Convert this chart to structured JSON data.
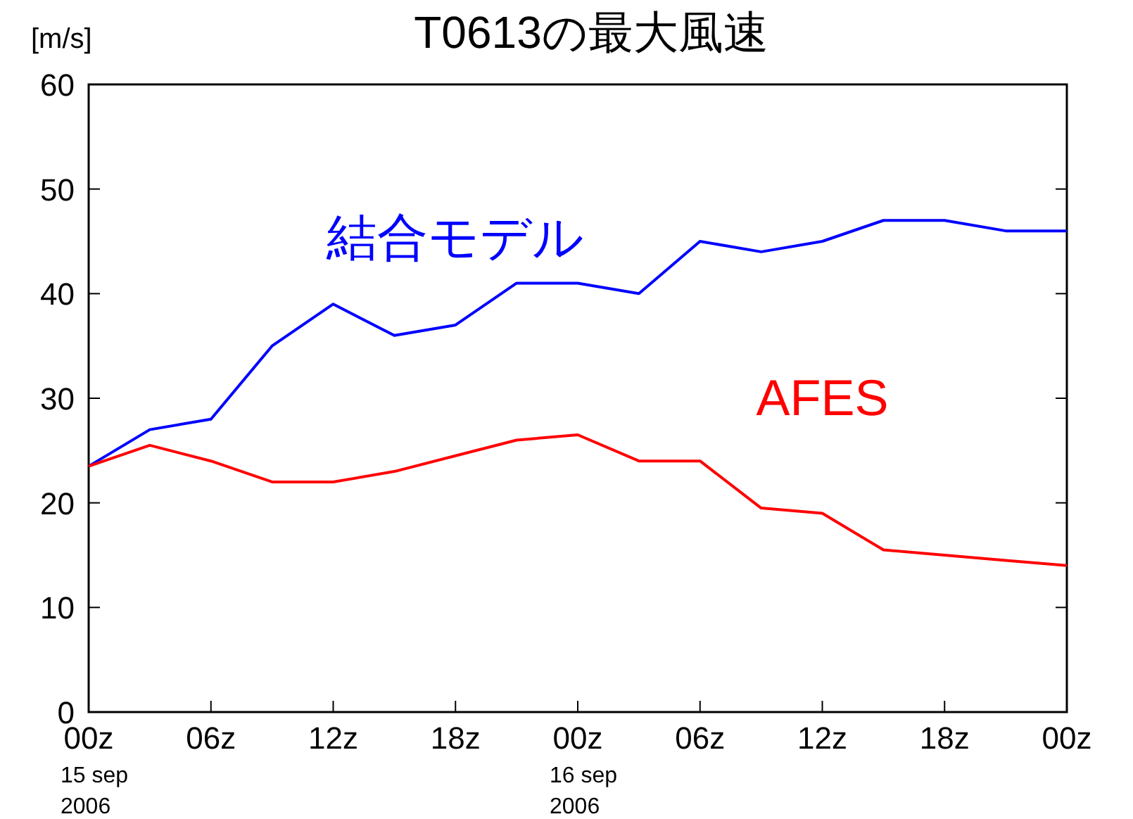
{
  "chart_data": {
    "type": "line",
    "title": "T0613の最大風速",
    "ylabel": "[m/s]",
    "x": [
      "2006-09-15T00:00",
      "2006-09-15T03:00",
      "2006-09-15T06:00",
      "2006-09-15T09:00",
      "2006-09-15T12:00",
      "2006-09-15T15:00",
      "2006-09-15T18:00",
      "2006-09-15T21:00",
      "2006-09-16T00:00",
      "2006-09-16T03:00",
      "2006-09-16T06:00",
      "2006-09-16T09:00",
      "2006-09-16T12:00",
      "2006-09-16T15:00",
      "2006-09-16T18:00",
      "2006-09-16T21:00",
      "2006-09-17T00:00"
    ],
    "xlim": [
      "2006-09-15T00:00",
      "2006-09-17T00:00"
    ],
    "xticks": [
      {
        "value": "2006-09-15T00:00",
        "label": "00z\n15 sep\n2006"
      },
      {
        "value": "2006-09-15T06:00",
        "label": "06z"
      },
      {
        "value": "2006-09-15T12:00",
        "label": "12z"
      },
      {
        "value": "2006-09-15T18:00",
        "label": "18z"
      },
      {
        "value": "2006-09-16T00:00",
        "label": "00z\n16 sep\n2006"
      },
      {
        "value": "2006-09-16T06:00",
        "label": "06z"
      },
      {
        "value": "2006-09-16T12:00",
        "label": "12z"
      },
      {
        "value": "2006-09-16T18:00",
        "label": "18z"
      },
      {
        "value": "2006-09-17T00:00",
        "label": "00z"
      }
    ],
    "ylim": [
      0,
      60
    ],
    "yticks": [
      0,
      10,
      20,
      30,
      40,
      50,
      60
    ],
    "grid": false,
    "series": [
      {
        "name": "結合モデル",
        "color": "#0000ff",
        "values": [
          23.5,
          27,
          28,
          35,
          39,
          36,
          37,
          41,
          41,
          40,
          45,
          44,
          45,
          47,
          47,
          46,
          46
        ]
      },
      {
        "name": "AFES",
        "color": "#ff0000",
        "values": [
          23.5,
          25.5,
          24,
          22,
          22,
          23,
          24.5,
          26,
          26.5,
          24,
          24,
          19.5,
          19,
          15.5,
          15,
          14.5,
          14
        ]
      }
    ]
  }
}
